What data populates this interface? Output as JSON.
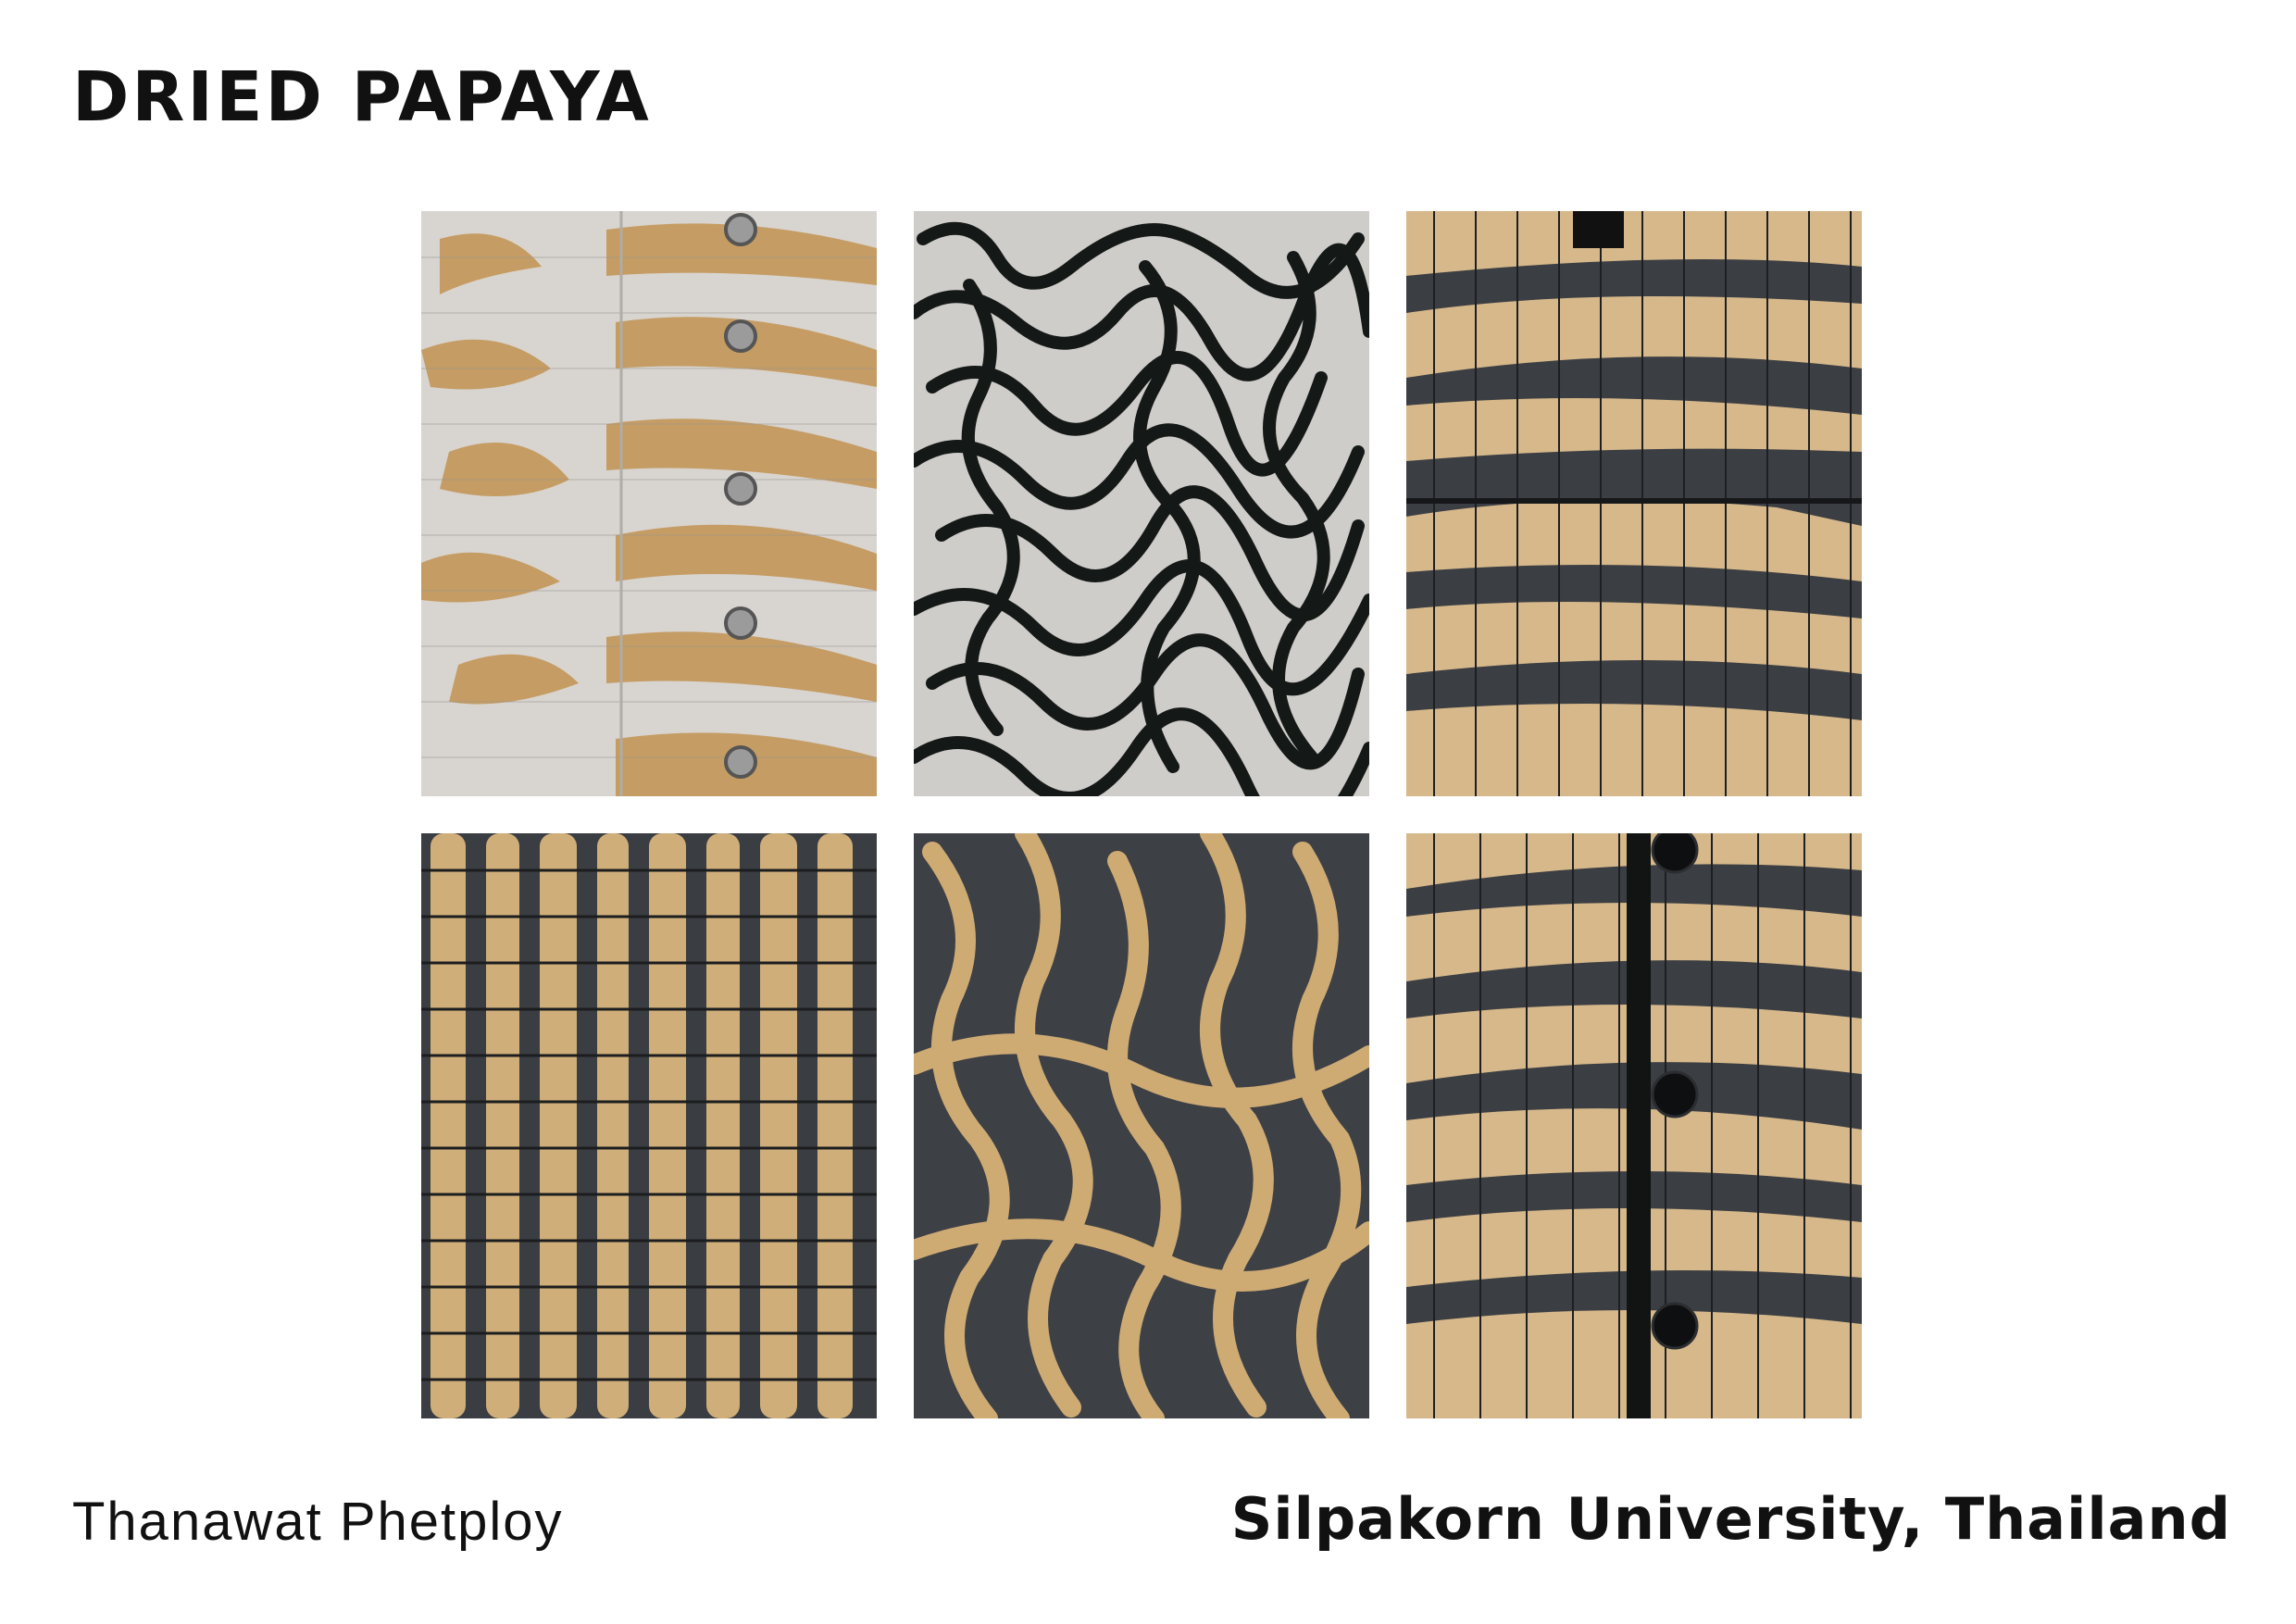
{
  "header": {
    "title": "DRIED PAPAYA"
  },
  "footer": {
    "author": "Thanawat Phetploy",
    "institution": "Silpakorn University, Thailand"
  },
  "colors": {
    "papaya": "#c9a46d",
    "papaya_dark": "#8e6a3a",
    "mesh": "#3a3d42",
    "fabric_white": "#d9d6d2",
    "black_strip": "#121413"
  }
}
